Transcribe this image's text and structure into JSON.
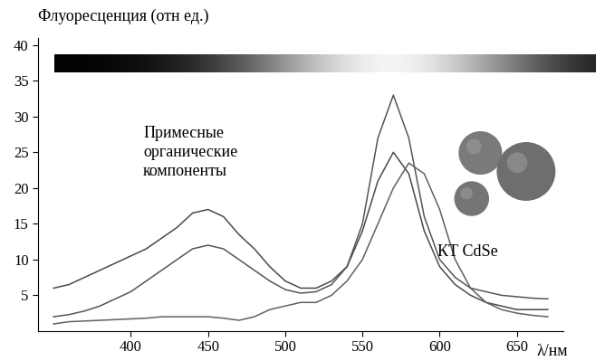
{
  "chart_data": {
    "type": "line",
    "y_label": "Флуоресценция (отн ед.)",
    "x_label": "λ/нм",
    "annotations": [
      "Примесные\nорганические\nкомпоненты",
      "КТ CdSe"
    ],
    "x": [
      350,
      360,
      370,
      380,
      390,
      400,
      410,
      420,
      430,
      440,
      450,
      460,
      470,
      480,
      490,
      500,
      510,
      520,
      530,
      540,
      550,
      560,
      570,
      580,
      590,
      600,
      610,
      620,
      630,
      640,
      650,
      660,
      670
    ],
    "series": [
      {
        "color": "#4a4a4a",
        "values": [
          6,
          6.5,
          7.5,
          8.5,
          9.5,
          10.5,
          11.5,
          13,
          14.5,
          16.5,
          17,
          16,
          13.5,
          11.5,
          9,
          7,
          6,
          6,
          7,
          9,
          14,
          21,
          25,
          22,
          14,
          9,
          6.5,
          5,
          4,
          3.5,
          3,
          3,
          3
        ]
      },
      {
        "color": "#555555",
        "values": [
          2,
          2.3,
          2.8,
          3.5,
          4.5,
          5.5,
          7,
          8.5,
          10,
          11.5,
          12,
          11.5,
          10,
          8.5,
          7,
          5.8,
          5.3,
          5.5,
          6.5,
          9,
          15,
          27,
          33,
          27,
          16,
          10,
          7.5,
          6,
          5.5,
          5,
          4.8,
          4.6,
          4.5
        ]
      },
      {
        "color": "#606060",
        "values": [
          1,
          1.3,
          1.4,
          1.5,
          1.6,
          1.7,
          1.8,
          2,
          2,
          2,
          2,
          1.8,
          1.5,
          2,
          3,
          3.5,
          4,
          4,
          5,
          7,
          10,
          15,
          20,
          23.5,
          22,
          17,
          10,
          6,
          4,
          3,
          2.5,
          2.2,
          2
        ]
      }
    ],
    "xlim": [
      340,
      680
    ],
    "xticks": [
      400,
      450,
      500,
      550,
      600,
      650
    ],
    "ylim": [
      0,
      41
    ],
    "yticks": [
      5,
      10,
      15,
      20,
      25,
      30,
      35,
      40
    ]
  }
}
